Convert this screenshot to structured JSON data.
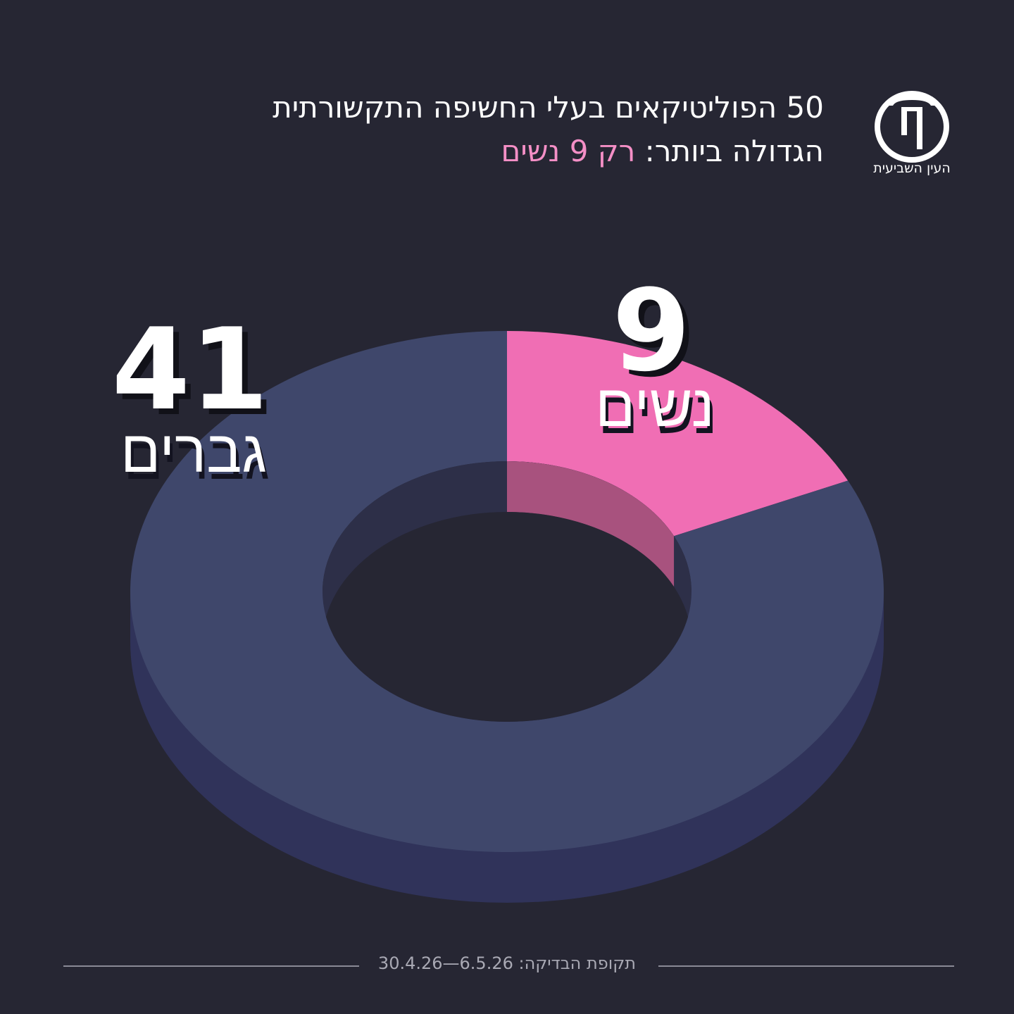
{
  "logo": "העין השביעית",
  "chart_data": {
    "type": "donut",
    "title": [
      "50 הפוליטיקאים בעלי החשיפה התקשורתית",
      "הגדולה ביותר:"
    ],
    "title_highlight": "רק 9 נשים",
    "categories": [
      "נשים",
      "גברים"
    ],
    "values": [
      9,
      41
    ],
    "colors": [
      "#f06eb4",
      "#3f476b"
    ],
    "footer": "תקופת הבדיקה: 6.5.26—30.4.26"
  }
}
